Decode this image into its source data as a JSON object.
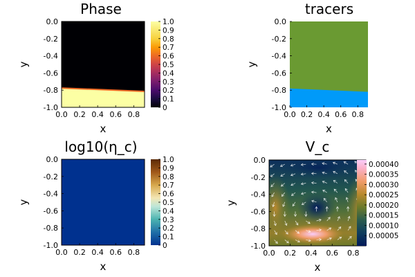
{
  "figure": {
    "background": "#ffffff"
  },
  "chart_data": [
    {
      "id": "phase",
      "type": "heatmap",
      "title": "Phase",
      "xlabel": "x",
      "ylabel": "y",
      "xlim": [
        0.0,
        0.92
      ],
      "ylim": [
        -1.0,
        0.0
      ],
      "xticks": [
        "0.0",
        "0.2",
        "0.4",
        "0.6",
        "0.8"
      ],
      "yticks": [
        "0.0",
        "-0.2",
        "-0.4",
        "-0.6",
        "-0.8",
        "-1.0"
      ],
      "colormap": "inferno",
      "colors": {
        "upper": "#000004",
        "lower": "#fcffa4",
        "interface": "#ed6925"
      },
      "interface": {
        "x": [
          0.0,
          0.92
        ],
        "y": [
          -0.775,
          -0.815
        ]
      },
      "colorbar": {
        "min": 0.0,
        "max": 1.0,
        "ticks": [
          "0",
          "0.1",
          "0.2",
          "0.3",
          "0.4",
          "0.5",
          "0.6",
          "0.7",
          "0.8",
          "0.9",
          "1.0"
        ]
      }
    },
    {
      "id": "tracers",
      "type": "scatter",
      "title": "tracers",
      "xlabel": "x",
      "ylabel": "y",
      "xlim": [
        0.0,
        0.92
      ],
      "ylim": [
        -1.0,
        0.0
      ],
      "xticks": [
        "0.0",
        "0.2",
        "0.4",
        "0.6",
        "0.8"
      ],
      "yticks": [
        "0.0",
        "-0.2",
        "-0.4",
        "-0.6",
        "-0.8",
        "-1.0"
      ],
      "colors": {
        "upper": "#6a9a32",
        "lower": "#009af9"
      },
      "interface": {
        "x": [
          0.0,
          0.92
        ],
        "y": [
          -0.78,
          -0.82
        ]
      }
    },
    {
      "id": "log_eta",
      "type": "heatmap",
      "title": "log10(η_c)",
      "xlabel": "x",
      "ylabel": "y",
      "xlim": [
        0.0,
        0.92
      ],
      "ylim": [
        -1.0,
        0.0
      ],
      "xticks": [
        "0.0",
        "0.2",
        "0.4",
        "0.6",
        "0.8"
      ],
      "yticks": [
        "0.0",
        "-0.2",
        "-0.4",
        "-0.6",
        "-0.8",
        "-1.0"
      ],
      "colormap": "BrBG-reversed",
      "colors": {
        "field": "#00318f"
      },
      "colorbar": {
        "min": 0.0,
        "max": 1.0,
        "ticks": [
          "0",
          "0.1",
          "0.2",
          "0.3",
          "0.4",
          "0.5",
          "0.6",
          "0.7",
          "0.8",
          "0.9",
          "1.0"
        ]
      }
    },
    {
      "id": "v_c",
      "type": "heatmap",
      "title": "V_c",
      "xlabel": "x",
      "ylabel": "y",
      "xlim": [
        0.0,
        0.92
      ],
      "ylim": [
        -1.0,
        0.0
      ],
      "xticks": [
        "0.0",
        "0.2",
        "0.4",
        "0.6",
        "0.8"
      ],
      "yticks": [
        "0.0",
        "-0.2",
        "-0.4",
        "-0.6",
        "-0.8",
        "-1.0"
      ],
      "colormap": "batlow",
      "colorbar": {
        "min": 0.0,
        "max": 0.00042,
        "ticks": [
          "0.00005",
          "0.00010",
          "0.00015",
          "0.00020",
          "0.00025",
          "0.00030",
          "0.00035",
          "0.00040"
        ]
      },
      "velocity_overlay": {
        "arrows": true,
        "color": "#ffffff"
      }
    }
  ]
}
